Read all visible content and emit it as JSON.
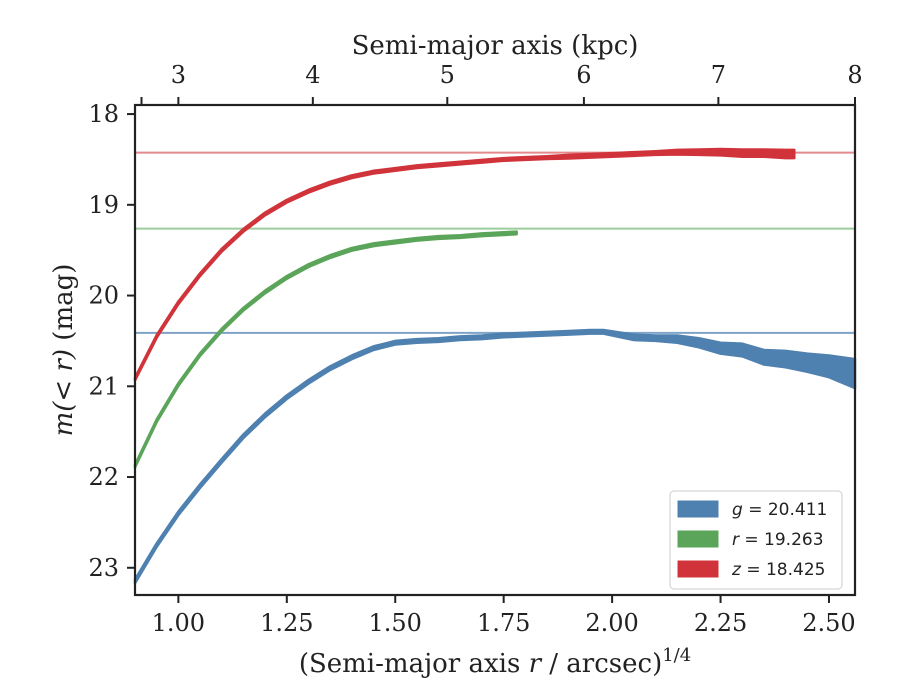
{
  "chart_data": {
    "type": "area",
    "xlabel_main": "(Semi-major axis ",
    "xlabel_var": "r",
    "xlabel_mid": " / arcsec)",
    "xlabel_sup": "1/4",
    "ylabel_main": "m(< r)",
    "ylabel_unit": " (mag)",
    "top_xlabel": "Semi-major axis (kpc)",
    "xlim": [
      0.9,
      2.56
    ],
    "ylim": [
      23.3,
      17.9
    ],
    "y_inverted": true,
    "xticks": [
      1.0,
      1.25,
      1.5,
      1.75,
      2.0,
      2.25,
      2.5
    ],
    "xtick_labels": [
      "1.00",
      "1.25",
      "1.50",
      "1.75",
      "2.00",
      "2.25",
      "2.50"
    ],
    "yticks": [
      18,
      19,
      20,
      21,
      22,
      23
    ],
    "ytick_labels": [
      "18",
      "19",
      "20",
      "21",
      "22",
      "23"
    ],
    "top_xticks": [
      2.888,
      3.0,
      4.0,
      5.0,
      6.0,
      7.0,
      8.0
    ],
    "top_xtick_labels": [
      "",
      "3",
      "4",
      "5",
      "6",
      "7",
      "8"
    ],
    "top_xticks_at_bottom_units": [
      0.915,
      1.0,
      1.31,
      1.62,
      1.935,
      2.245,
      2.56
    ],
    "legend_position": "lower-right",
    "grid": false,
    "series": [
      {
        "name": "g = 20.411",
        "legend_var": "g",
        "legend_value": "= 20.411",
        "color": "#4f81b0",
        "asymptote": 20.411,
        "asymptote_color": "#7fa3c6",
        "x": [
          0.9,
          0.95,
          1.0,
          1.05,
          1.1,
          1.15,
          1.2,
          1.25,
          1.3,
          1.35,
          1.4,
          1.45,
          1.5,
          1.55,
          1.6,
          1.65,
          1.7,
          1.75,
          1.8,
          1.85,
          1.9,
          1.95,
          1.98,
          2.05,
          2.1,
          2.15,
          2.2,
          2.25,
          2.3,
          2.35,
          2.4,
          2.45,
          2.5,
          2.56
        ],
        "y": [
          23.15,
          22.75,
          22.4,
          22.1,
          21.82,
          21.55,
          21.32,
          21.12,
          20.95,
          20.8,
          20.68,
          20.58,
          20.52,
          20.5,
          20.49,
          20.47,
          20.46,
          20.44,
          20.43,
          20.42,
          20.41,
          20.4,
          20.4,
          20.46,
          20.47,
          20.48,
          20.52,
          20.58,
          20.6,
          20.68,
          20.7,
          20.74,
          20.78,
          20.86
        ],
        "err": [
          0.02,
          0.02,
          0.02,
          0.02,
          0.02,
          0.02,
          0.02,
          0.02,
          0.02,
          0.02,
          0.02,
          0.02,
          0.02,
          0.02,
          0.02,
          0.02,
          0.02,
          0.02,
          0.02,
          0.02,
          0.02,
          0.02,
          0.02,
          0.03,
          0.03,
          0.04,
          0.05,
          0.06,
          0.07,
          0.08,
          0.09,
          0.1,
          0.12,
          0.16
        ]
      },
      {
        "name": "r = 19.263",
        "legend_var": "r",
        "legend_value": "= 19.263",
        "color": "#5aa55a",
        "asymptote": 19.263,
        "asymptote_color": "#9ccc9c",
        "x": [
          0.9,
          0.95,
          1.0,
          1.05,
          1.1,
          1.15,
          1.2,
          1.25,
          1.3,
          1.35,
          1.4,
          1.45,
          1.5,
          1.55,
          1.6,
          1.65,
          1.7,
          1.78
        ],
        "y": [
          21.88,
          21.38,
          20.98,
          20.65,
          20.38,
          20.15,
          19.96,
          19.8,
          19.67,
          19.57,
          19.49,
          19.44,
          19.41,
          19.38,
          19.36,
          19.35,
          19.33,
          19.31
        ],
        "err": [
          0.015,
          0.015,
          0.015,
          0.015,
          0.015,
          0.015,
          0.015,
          0.015,
          0.015,
          0.015,
          0.015,
          0.015,
          0.015,
          0.015,
          0.015,
          0.015,
          0.015,
          0.015
        ]
      },
      {
        "name": "z = 18.425",
        "legend_var": "z",
        "legend_value": "= 18.425",
        "color": "#d0343a",
        "asymptote": 18.425,
        "asymptote_color": "#e48a8d",
        "x": [
          0.9,
          0.95,
          1.0,
          1.05,
          1.1,
          1.15,
          1.2,
          1.25,
          1.3,
          1.35,
          1.4,
          1.45,
          1.5,
          1.55,
          1.6,
          1.65,
          1.7,
          1.75,
          1.8,
          1.85,
          1.9,
          1.95,
          2.0,
          2.05,
          2.1,
          2.15,
          2.2,
          2.25,
          2.3,
          2.35,
          2.4,
          2.42
        ],
        "y": [
          20.92,
          20.45,
          20.08,
          19.77,
          19.5,
          19.28,
          19.1,
          18.96,
          18.85,
          18.76,
          18.69,
          18.64,
          18.61,
          18.58,
          18.56,
          18.54,
          18.52,
          18.5,
          18.49,
          18.48,
          18.47,
          18.46,
          18.45,
          18.44,
          18.43,
          18.42,
          18.42,
          18.42,
          18.43,
          18.43,
          18.44,
          18.44
        ],
        "err": [
          0.015,
          0.015,
          0.015,
          0.015,
          0.015,
          0.015,
          0.015,
          0.015,
          0.015,
          0.015,
          0.015,
          0.015,
          0.015,
          0.015,
          0.015,
          0.015,
          0.015,
          0.015,
          0.015,
          0.015,
          0.02,
          0.02,
          0.02,
          0.02,
          0.02,
          0.025,
          0.03,
          0.035,
          0.04,
          0.04,
          0.045,
          0.045
        ]
      }
    ]
  }
}
